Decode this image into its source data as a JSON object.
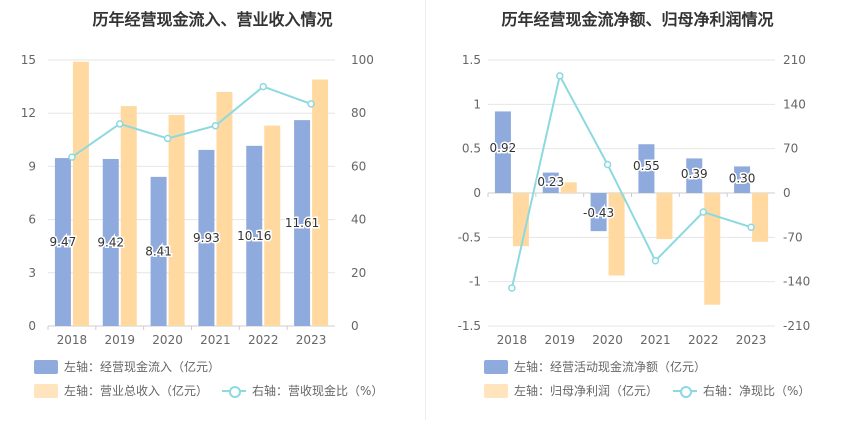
{
  "chart_data": [
    {
      "type": "bar",
      "title": "历年经营现金流入、营业收入情况",
      "categories": [
        "2018",
        "2019",
        "2020",
        "2021",
        "2022",
        "2023"
      ],
      "series": [
        {
          "name": "左轴：经营现金流入（亿元）",
          "axis": "left",
          "type": "bar",
          "values": [
            9.47,
            9.42,
            8.41,
            9.93,
            10.16,
            11.61
          ],
          "color": "#8faadc"
        },
        {
          "name": "左轴：营业总收入（亿元）",
          "axis": "left",
          "type": "bar",
          "values": [
            14.9,
            12.4,
            11.9,
            13.2,
            11.3,
            13.9
          ],
          "color": "#ffd9a0"
        },
        {
          "name": "右轴：营收现金比（%）",
          "axis": "right",
          "type": "line",
          "values": [
            63.5,
            76.0,
            70.5,
            75.3,
            90.0,
            83.5
          ],
          "color": "#8dd9e0"
        }
      ],
      "data_labels": [
        "9.47",
        "9.42",
        "8.41",
        "9.93",
        "10.16",
        "11.61"
      ],
      "left_axis": {
        "min": 0,
        "max": 15,
        "ticks": [
          "0",
          "3",
          "6",
          "9",
          "12",
          "15"
        ]
      },
      "right_axis": {
        "min": 0,
        "max": 100,
        "ticks": [
          "0",
          "20",
          "40",
          "60",
          "80",
          "100"
        ]
      },
      "grid": true,
      "legend_position": "bottom-left"
    },
    {
      "type": "bar",
      "title": "历年经营现金流净额、归母净利润情况",
      "categories": [
        "2018",
        "2019",
        "2020",
        "2021",
        "2022",
        "2023"
      ],
      "series": [
        {
          "name": "左轴：经营活动现金流净额（亿元）",
          "axis": "left",
          "type": "bar",
          "values": [
            0.92,
            0.23,
            -0.43,
            0.55,
            0.39,
            0.3
          ],
          "color": "#8faadc"
        },
        {
          "name": "左轴：归母净利润（亿元）",
          "axis": "left",
          "type": "bar",
          "values": [
            -0.6,
            0.12,
            -0.93,
            -0.52,
            -1.26,
            -0.55
          ],
          "color": "#ffd9a0"
        },
        {
          "name": "右轴：净现比（%）",
          "axis": "right",
          "type": "line",
          "values": [
            -150,
            185,
            45,
            -107,
            -30,
            -54
          ],
          "color": "#8dd9e0"
        }
      ],
      "data_labels": [
        "0.92",
        "0.23",
        "-0.43",
        "0.55",
        "0.39",
        "0.30"
      ],
      "left_axis": {
        "min": -1.5,
        "max": 1.5,
        "ticks": [
          "-1.5",
          "-1",
          "-0.5",
          "0",
          "0.5",
          "1",
          "1.5"
        ]
      },
      "right_axis": {
        "min": -210,
        "max": 210,
        "ticks": [
          "-210",
          "-140",
          "-70",
          "0",
          "70",
          "140",
          "210"
        ]
      },
      "grid": true,
      "legend_position": "bottom-left"
    }
  ]
}
